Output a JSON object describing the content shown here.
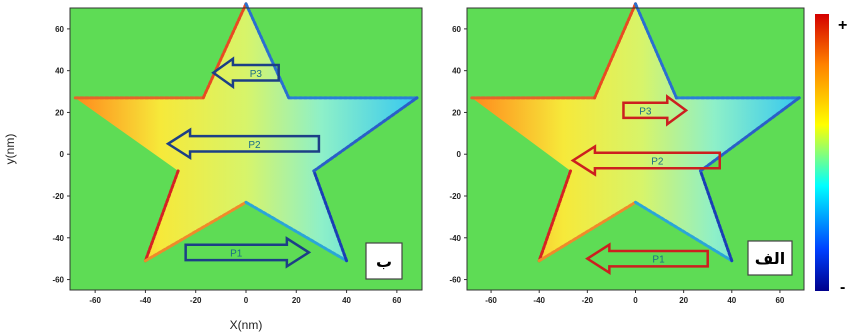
{
  "chart_data": [
    {
      "type": "heatmap",
      "panel_label": "ب",
      "xlabel": "X(nm)",
      "ylabel": "y(nm)",
      "xlim": [
        -70,
        70
      ],
      "ylim": [
        -65,
        70
      ],
      "xticks": [
        -60,
        -40,
        -20,
        0,
        20,
        40,
        60
      ],
      "yticks": [
        60,
        40,
        20,
        0,
        -20,
        -40,
        -60
      ],
      "background": "#5edc55",
      "arrows": [
        {
          "label": "P3",
          "direction": "left",
          "y": 39,
          "x_from": 13,
          "x_to": -13,
          "color": "#1c3f86"
        },
        {
          "label": "P2",
          "direction": "left",
          "y": 5,
          "x_from": 29,
          "x_to": -31,
          "color": "#1c3f86"
        },
        {
          "label": "P1",
          "direction": "right",
          "y": -47,
          "x_from": -24,
          "x_to": 25,
          "color": "#1c3f86"
        }
      ]
    },
    {
      "type": "heatmap",
      "panel_label": "الف",
      "xlabel": "",
      "ylabel": "",
      "xlim": [
        -70,
        70
      ],
      "ylim": [
        -65,
        70
      ],
      "xticks": [
        -60,
        -40,
        -20,
        0,
        20,
        40,
        60
      ],
      "yticks": [
        60,
        40,
        20,
        0,
        -20,
        -40,
        -60
      ],
      "background": "#5edc55",
      "arrows": [
        {
          "label": "P3",
          "direction": "right",
          "y": 21,
          "x_from": -5,
          "x_to": 21,
          "color": "#cc1f1f"
        },
        {
          "label": "P2",
          "direction": "left",
          "y": -3,
          "x_from": 35,
          "x_to": -26,
          "color": "#cc1f1f"
        },
        {
          "label": "P1",
          "direction": "left",
          "y": -50,
          "x_from": 30,
          "x_to": -20,
          "color": "#cc1f1f"
        }
      ]
    }
  ],
  "colorbar": {
    "max_label": "+",
    "min_label": "-",
    "stops": [
      "#d40000",
      "#ff8000",
      "#ffff00",
      "#00ffff",
      "#0040ff",
      "#00008b"
    ]
  }
}
